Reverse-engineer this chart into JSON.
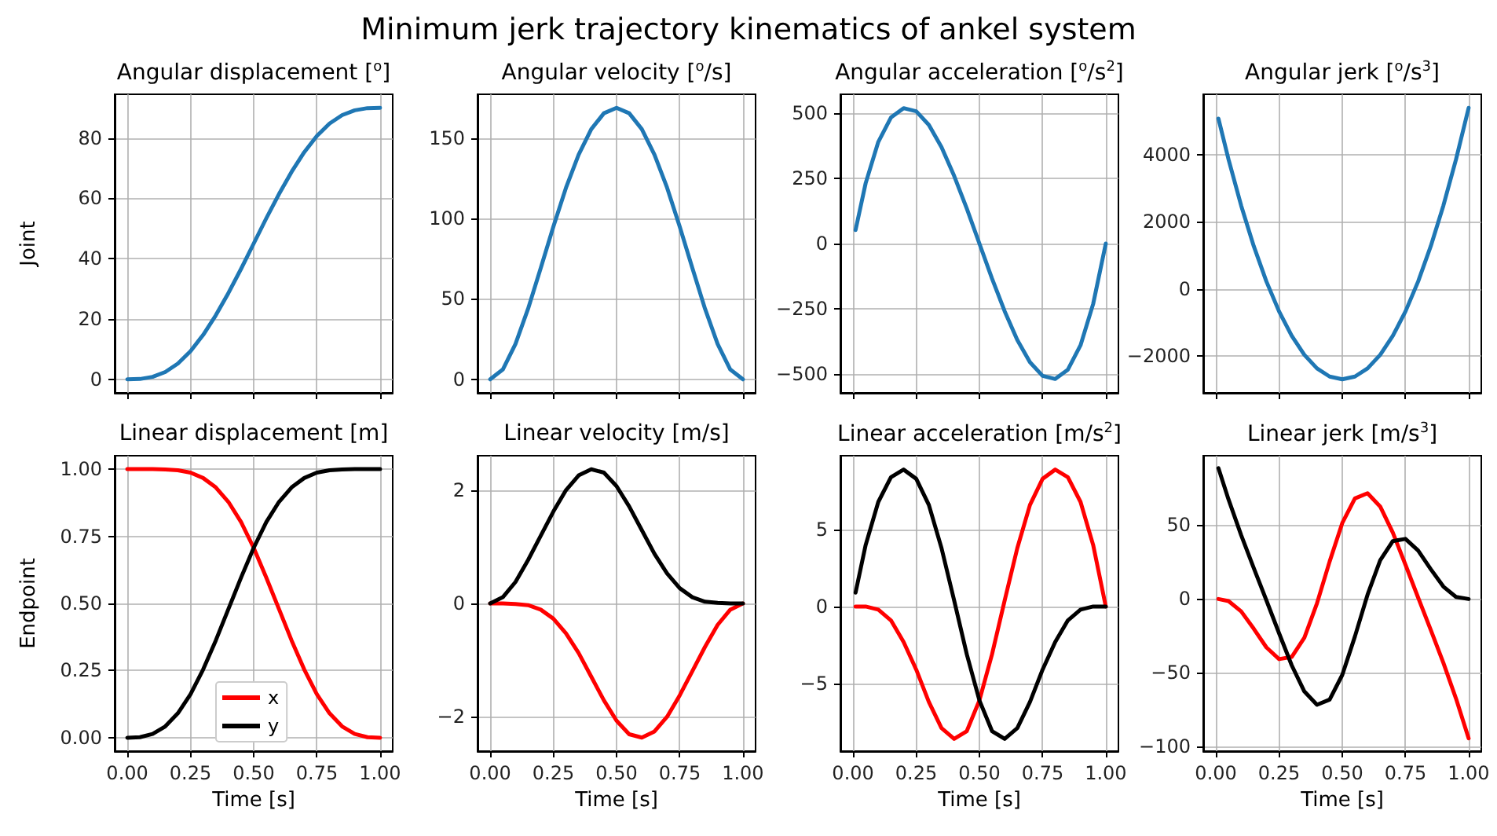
{
  "chart_data": [
    {
      "type": "line",
      "title": "Angular displacement [$^{o}$]",
      "ylabel": "Joint",
      "annotations": [
        "Minimum jerk trajectory kinematics of ankel system"
      ],
      "x": [
        0,
        0.05,
        0.1,
        0.15,
        0.2,
        0.25,
        0.3,
        0.35,
        0.4,
        0.45,
        0.5,
        0.55,
        0.6,
        0.65,
        0.7,
        0.75,
        0.8,
        0.85,
        0.9,
        0.95,
        1
      ],
      "values": [
        0,
        0.1,
        0.8,
        2.4,
        5.2,
        9.3,
        14.7,
        21.2,
        28.6,
        36.6,
        45,
        53.4,
        61.4,
        68.8,
        75.3,
        80.7,
        84.8,
        87.6,
        89.2,
        89.9,
        90
      ],
      "color": "#1f77b4",
      "xlim": [
        -0.05,
        1.05
      ],
      "xticks": [
        0,
        0.25,
        0.5,
        0.75,
        1
      ],
      "ylim": [
        -4.5,
        94.5
      ],
      "yticks": [
        0,
        20,
        40,
        60,
        80
      ],
      "grid": true,
      "tick_labels": "y",
      "line_style": "solid"
    },
    {
      "type": "line",
      "title": "Angular velocity [$^{o}$/s]",
      "x": [
        0,
        0.05,
        0.1,
        0.15,
        0.2,
        0.25,
        0.3,
        0.35,
        0.4,
        0.45,
        0.5,
        0.55,
        0.6,
        0.65,
        0.7,
        0.75,
        0.8,
        0.85,
        0.9,
        0.95,
        1
      ],
      "values": [
        0,
        6.1,
        21.9,
        43.9,
        69.1,
        94.9,
        119.1,
        139.7,
        155.5,
        165.4,
        168.8,
        165.4,
        155.5,
        139.7,
        119.1,
        94.9,
        69.1,
        43.9,
        21.9,
        6.1,
        0
      ],
      "color": "#1f77b4",
      "xlim": [
        -0.05,
        1.05
      ],
      "xticks": [
        0,
        0.25,
        0.5,
        0.75,
        1
      ],
      "ylim": [
        -8.4,
        177.2
      ],
      "yticks": [
        0,
        50,
        100,
        150
      ],
      "grid": true,
      "tick_labels": "y",
      "line_style": "solid"
    },
    {
      "type": "line",
      "title": "Angular acceleration [$^{o}$/s$^{2}$]",
      "x": [
        0.01,
        0.05,
        0.1,
        0.15,
        0.2,
        0.25,
        0.3,
        0.35,
        0.4,
        0.45,
        0.5,
        0.55,
        0.6,
        0.65,
        0.7,
        0.75,
        0.8,
        0.85,
        0.9,
        0.95,
        1
      ],
      "values": [
        52,
        231,
        389,
        482,
        518,
        506,
        454,
        369,
        259,
        134,
        0,
        -134,
        -259,
        -369,
        -454,
        -506,
        -518,
        -482,
        -389,
        -231,
        0
      ],
      "color": "#1f77b4",
      "xlim": [
        -0.05,
        1.05
      ],
      "xticks": [
        0,
        0.25,
        0.5,
        0.75,
        1
      ],
      "ylim": [
        -571,
        571
      ],
      "yticks": [
        {
          "value": -500,
          "label": "−500"
        },
        {
          "value": -250,
          "label": "−250"
        },
        0,
        250,
        500
      ],
      "grid": true,
      "tick_labels": "y",
      "line_style": "solid"
    },
    {
      "type": "line",
      "title": "Angular jerk [$^{o}$/s$^{3}$]",
      "x": [
        0.01,
        0.05,
        0.1,
        0.15,
        0.2,
        0.25,
        0.3,
        0.35,
        0.4,
        0.45,
        0.5,
        0.55,
        0.6,
        0.65,
        0.7,
        0.75,
        0.8,
        0.85,
        0.9,
        0.95,
        1
      ],
      "values": [
        5079,
        3861,
        2484,
        1269,
        216,
        -675,
        -1404,
        -1971,
        -2376,
        -2619,
        -2700,
        -2619,
        -2376,
        -1971,
        -1404,
        -675,
        216,
        1269,
        2484,
        3861,
        5400
      ],
      "color": "#1f77b4",
      "xlim": [
        -0.05,
        1.05
      ],
      "xticks": [
        0,
        0.25,
        0.5,
        0.75,
        1
      ],
      "ylim": [
        -3105,
        5805
      ],
      "yticks": [
        {
          "value": -2000,
          "label": "−2000"
        },
        0,
        2000,
        4000
      ],
      "grid": true,
      "tick_labels": "y",
      "line_style": "solid"
    },
    {
      "type": "line",
      "title": "Linear displacement [m]",
      "xlabel": "Time [s]",
      "ylabel": "Endpoint",
      "x": [
        0,
        0.05,
        0.1,
        0.15,
        0.2,
        0.25,
        0.3,
        0.35,
        0.4,
        0.45,
        0.5,
        0.55,
        0.6,
        0.65,
        0.7,
        0.75,
        0.8,
        0.85,
        0.9,
        0.95,
        1
      ],
      "series": [
        {
          "name": "x",
          "color": "#ff0000",
          "values": [
            1,
            1,
            1,
            0.999,
            0.996,
            0.987,
            0.967,
            0.932,
            0.878,
            0.803,
            0.707,
            0.596,
            0.479,
            0.362,
            0.254,
            0.162,
            0.091,
            0.042,
            0.014,
            0.002,
            0
          ]
        },
        {
          "name": "y",
          "color": "#000000",
          "values": [
            0,
            0.002,
            0.014,
            0.042,
            0.091,
            0.162,
            0.254,
            0.362,
            0.479,
            0.596,
            0.707,
            0.803,
            0.878,
            0.932,
            0.967,
            0.987,
            0.996,
            0.999,
            1,
            1,
            1
          ]
        }
      ],
      "xlim": [
        -0.05,
        1.05
      ],
      "xticks": [
        {
          "value": 0,
          "label": "0.00"
        },
        {
          "value": 0.25,
          "label": "0.25"
        },
        {
          "value": 0.5,
          "label": "0.50"
        },
        {
          "value": 0.75,
          "label": "0.75"
        },
        {
          "value": 1,
          "label": "1.00"
        }
      ],
      "ylim": [
        -0.05,
        1.05
      ],
      "yticks": [
        {
          "value": 0,
          "label": "0.00"
        },
        {
          "value": 0.25,
          "label": "0.25"
        },
        {
          "value": 0.5,
          "label": "0.50"
        },
        {
          "value": 0.75,
          "label": "0.75"
        },
        {
          "value": 1,
          "label": "1.00"
        }
      ],
      "grid": true,
      "legend": "bottom",
      "line_style": "solid"
    },
    {
      "type": "line",
      "title": "Linear velocity [m/s]",
      "xlabel": "Time [s]",
      "x": [
        0,
        0.05,
        0.1,
        0.15,
        0.2,
        0.25,
        0.3,
        0.35,
        0.4,
        0.45,
        0.5,
        0.55,
        0.6,
        0.65,
        0.7,
        0.75,
        0.8,
        0.85,
        0.9,
        0.95,
        1
      ],
      "series": [
        {
          "color": "#ff0000",
          "values": [
            0,
            0,
            -0.01,
            -0.03,
            -0.11,
            -0.27,
            -0.53,
            -0.88,
            -1.3,
            -1.72,
            -2.08,
            -2.32,
            -2.38,
            -2.27,
            -2.01,
            -1.63,
            -1.2,
            -0.77,
            -0.38,
            -0.11,
            0
          ]
        },
        {
          "color": "#000000",
          "values": [
            0,
            0.11,
            0.38,
            0.77,
            1.2,
            1.63,
            2.01,
            2.27,
            2.38,
            2.32,
            2.08,
            1.72,
            1.3,
            0.88,
            0.53,
            0.27,
            0.11,
            0.03,
            0.01,
            0,
            0
          ]
        }
      ],
      "xlim": [
        -0.05,
        1.05
      ],
      "xticks": [
        {
          "value": 0,
          "label": "0.00"
        },
        {
          "value": 0.25,
          "label": "0.25"
        },
        {
          "value": 0.5,
          "label": "0.50"
        },
        {
          "value": 0.75,
          "label": "0.75"
        },
        {
          "value": 1,
          "label": "1.00"
        }
      ],
      "ylim": [
        -2.62,
        2.62
      ],
      "yticks": [
        {
          "value": -2,
          "label": "−2"
        },
        0,
        2
      ],
      "grid": true,
      "line_style": "solid"
    },
    {
      "type": "line",
      "title": "Linear acceleration [m/s$^{2}$]",
      "xlabel": "Time [s]",
      "x": [
        0.01,
        0.05,
        0.1,
        0.15,
        0.2,
        0.25,
        0.3,
        0.35,
        0.4,
        0.45,
        0.5,
        0.55,
        0.6,
        0.65,
        0.7,
        0.75,
        0.8,
        0.85,
        0.9,
        0.95,
        1
      ],
      "series": [
        {
          "color": "#ff0000",
          "values": [
            0,
            0,
            -0.2,
            -0.9,
            -2.3,
            -4.1,
            -6.2,
            -7.9,
            -8.6,
            -8.1,
            -6.1,
            -3.1,
            0.4,
            3.8,
            6.6,
            8.3,
            8.9,
            8.4,
            6.8,
            4.0,
            0
          ]
        },
        {
          "color": "#000000",
          "values": [
            0.9,
            4.0,
            6.8,
            8.4,
            8.9,
            8.3,
            6.6,
            3.8,
            0.4,
            -3.1,
            -6.1,
            -8.1,
            -8.6,
            -7.9,
            -6.2,
            -4.1,
            -2.3,
            -0.9,
            -0.2,
            0,
            0
          ]
        }
      ],
      "xlim": [
        -0.05,
        1.05
      ],
      "xticks": [
        {
          "value": 0,
          "label": "0.00"
        },
        {
          "value": 0.25,
          "label": "0.25"
        },
        {
          "value": 0.5,
          "label": "0.50"
        },
        {
          "value": 0.75,
          "label": "0.75"
        },
        {
          "value": 1,
          "label": "1.00"
        }
      ],
      "ylim": [
        -9.4,
        9.8
      ],
      "yticks": [
        {
          "value": -5,
          "label": "−5"
        },
        0,
        5
      ],
      "grid": true,
      "line_style": "solid"
    },
    {
      "type": "line",
      "title": "Linear jerk [m/s$^{3}$]",
      "xlabel": "Time [s]",
      "x": [
        0.01,
        0.05,
        0.1,
        0.15,
        0.2,
        0.25,
        0.3,
        0.35,
        0.4,
        0.45,
        0.5,
        0.55,
        0.6,
        0.65,
        0.7,
        0.75,
        0.8,
        0.85,
        0.9,
        0.95,
        1
      ],
      "series": [
        {
          "color": "#ff0000",
          "values": [
            0,
            -1.4,
            -8.4,
            -20.2,
            -32.8,
            -40.7,
            -39.2,
            -26.2,
            -2.9,
            25.4,
            51.4,
            68.1,
            71.6,
            62.6,
            44.9,
            23.2,
            1.0,
            -20.9,
            -43.2,
            -67.4,
            -94.3
          ]
        },
        {
          "color": "#000000",
          "values": [
            88.6,
            67.4,
            43.2,
            20.9,
            -1.0,
            -23.2,
            -44.9,
            -62.6,
            -71.6,
            -68.1,
            -51.4,
            -25.4,
            2.9,
            26.2,
            39.2,
            40.7,
            32.8,
            20.2,
            8.4,
            1.4,
            0
          ]
        }
      ],
      "xlim": [
        -0.05,
        1.05
      ],
      "xticks": [
        {
          "value": 0,
          "label": "0.00"
        },
        {
          "value": 0.25,
          "label": "0.25"
        },
        {
          "value": 0.5,
          "label": "0.50"
        },
        {
          "value": 0.75,
          "label": "0.75"
        },
        {
          "value": 1,
          "label": "1.00"
        }
      ],
      "ylim": [
        -103,
        97
      ],
      "yticks": [
        {
          "value": -100,
          "label": "−100"
        },
        {
          "value": -50,
          "label": "−50"
        },
        0,
        50
      ],
      "grid": true,
      "line_style": "solid"
    }
  ]
}
